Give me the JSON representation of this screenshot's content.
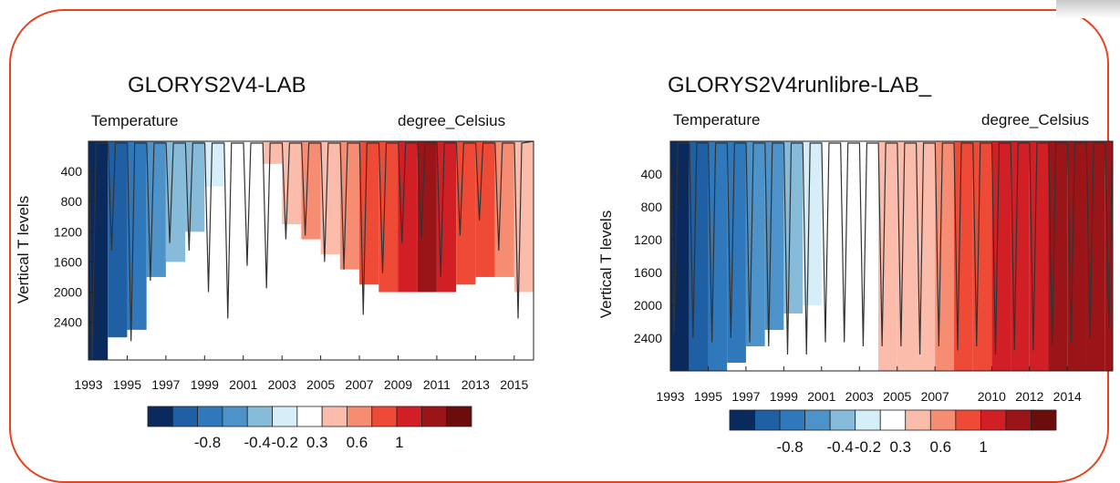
{
  "colors": {
    "frame": "#e8431e",
    "palette": [
      "#0a2a5e",
      "#1f5fa3",
      "#2f78bb",
      "#4d93c9",
      "#86bcd9",
      "#d6eef8",
      "#ffffff",
      "#fbbcac",
      "#f68c72",
      "#ef4a36",
      "#d21f26",
      "#9b1518",
      "#6b0d0d"
    ]
  },
  "chart_data": [
    {
      "type": "heatmap",
      "title": "GLORYS2V4-LAB",
      "left_label": "Temperature",
      "right_label": "degree_Celsius",
      "ylabel": "Vertical T levels",
      "xlabel": "",
      "x_ticks": [
        "1993",
        "1995",
        "1997",
        "1999",
        "2001",
        "2003",
        "2005",
        "2007",
        "2009",
        "2011",
        "2013",
        "2015"
      ],
      "y_ticks": [
        "400",
        "800",
        "1200",
        "1600",
        "2000",
        "2400"
      ],
      "xlim": [
        1993,
        2016
      ],
      "ylim": [
        2900,
        0
      ],
      "colorbar_labels": [
        "-0.8",
        "-0.4",
        "-0.2",
        "0.3",
        "0.6",
        "1"
      ],
      "grid": false,
      "anomaly_by_year": [
        {
          "x": 1993,
          "value": -1.0,
          "depth": 2900
        },
        {
          "x": 1994,
          "value": -0.8,
          "depth": 2600
        },
        {
          "x": 1995,
          "value": -0.7,
          "depth": 2500
        },
        {
          "x": 1996,
          "value": -0.4,
          "depth": 1800
        },
        {
          "x": 1997,
          "value": -0.25,
          "depth": 1600
        },
        {
          "x": 1998,
          "value": -0.2,
          "depth": 1200
        },
        {
          "x": 1999,
          "value": -0.15,
          "depth": 600
        },
        {
          "x": 2000,
          "value": 0,
          "depth": 300
        },
        {
          "x": 2001,
          "value": 0,
          "depth": 300
        },
        {
          "x": 2002,
          "value": 0.1,
          "depth": 300
        },
        {
          "x": 2003,
          "value": 0.3,
          "depth": 1100
        },
        {
          "x": 2004,
          "value": 0.35,
          "depth": 1300
        },
        {
          "x": 2005,
          "value": 0.3,
          "depth": 1500
        },
        {
          "x": 2006,
          "value": 0.4,
          "depth": 1700
        },
        {
          "x": 2007,
          "value": 0.5,
          "depth": 1900
        },
        {
          "x": 2008,
          "value": 0.55,
          "depth": 2000
        },
        {
          "x": 2009,
          "value": 0.7,
          "depth": 2000
        },
        {
          "x": 2010,
          "value": 0.9,
          "depth": 2000
        },
        {
          "x": 2011,
          "value": 0.8,
          "depth": 2000
        },
        {
          "x": 2012,
          "value": 0.6,
          "depth": 1900
        },
        {
          "x": 2013,
          "value": 0.55,
          "depth": 1800
        },
        {
          "x": 2014,
          "value": 0.4,
          "depth": 1800
        },
        {
          "x": 2015,
          "value": 0.3,
          "depth": 2000
        }
      ],
      "mixed_layer_depth_winter_max": [
        {
          "x": 1993,
          "depth": 2900
        },
        {
          "x": 1994,
          "depth": 1450
        },
        {
          "x": 1995,
          "depth": 2650
        },
        {
          "x": 1996,
          "depth": 1850
        },
        {
          "x": 1997,
          "depth": 1350
        },
        {
          "x": 1998,
          "depth": 1450
        },
        {
          "x": 1999,
          "depth": 2000
        },
        {
          "x": 2000,
          "depth": 2350
        },
        {
          "x": 2001,
          "depth": 1650
        },
        {
          "x": 2002,
          "depth": 1950
        },
        {
          "x": 2003,
          "depth": 1300
        },
        {
          "x": 2004,
          "depth": 1250
        },
        {
          "x": 2005,
          "depth": 1600
        },
        {
          "x": 2006,
          "depth": 1700
        },
        {
          "x": 2007,
          "depth": 2300
        },
        {
          "x": 2008,
          "depth": 1750
        },
        {
          "x": 2009,
          "depth": 1350
        },
        {
          "x": 2010,
          "depth": 1300
        },
        {
          "x": 2011,
          "depth": 1800
        },
        {
          "x": 2012,
          "depth": 1250
        },
        {
          "x": 2013,
          "depth": 1050
        },
        {
          "x": 2014,
          "depth": 1450
        },
        {
          "x": 2015,
          "depth": 2350
        }
      ]
    },
    {
      "type": "heatmap",
      "title": "GLORYS2V4runlibre-LAB_",
      "left_label": "Temperature",
      "right_label": "degree_Celsius",
      "ylabel": "Vertical T levels",
      "xlabel": "",
      "x_ticks": [
        "1993",
        "1995",
        "1997",
        "1999",
        "2001",
        "2003",
        "2005",
        "2007",
        "2010",
        "2012",
        "2014"
      ],
      "y_ticks": [
        "400",
        "800",
        "1200",
        "1600",
        "2000",
        "2400"
      ],
      "xlim": [
        1993,
        2016.4
      ],
      "ylim": [
        2800,
        0
      ],
      "colorbar_labels": [
        "-0.8",
        "-0.4",
        "-0.2",
        "0.3",
        "0.6",
        "1"
      ],
      "grid": false,
      "anomaly_by_year": [
        {
          "x": 1993,
          "value": -1.0,
          "depth": 2800
        },
        {
          "x": 1994,
          "value": -0.8,
          "depth": 2800
        },
        {
          "x": 1995,
          "value": -0.7,
          "depth": 2800
        },
        {
          "x": 1996,
          "value": -0.6,
          "depth": 2700
        },
        {
          "x": 1997,
          "value": -0.5,
          "depth": 2500
        },
        {
          "x": 1998,
          "value": -0.4,
          "depth": 2300
        },
        {
          "x": 1999,
          "value": -0.25,
          "depth": 2100
        },
        {
          "x": 2000,
          "value": -0.1,
          "depth": 2000
        },
        {
          "x": 2001,
          "value": 0,
          "depth": 2800
        },
        {
          "x": 2002,
          "value": 0,
          "depth": 2800
        },
        {
          "x": 2003,
          "value": 0,
          "depth": 2800
        },
        {
          "x": 2004,
          "value": 0.1,
          "depth": 2800
        },
        {
          "x": 2005,
          "value": 0.2,
          "depth": 2800
        },
        {
          "x": 2006,
          "value": 0.3,
          "depth": 2800
        },
        {
          "x": 2007,
          "value": 0.4,
          "depth": 2800
        },
        {
          "x": 2008,
          "value": 0.5,
          "depth": 2800
        },
        {
          "x": 2009,
          "value": 0.6,
          "depth": 2800
        },
        {
          "x": 2010,
          "value": 0.7,
          "depth": 2800
        },
        {
          "x": 2011,
          "value": 0.8,
          "depth": 2800
        },
        {
          "x": 2012,
          "value": 0.8,
          "depth": 2800
        },
        {
          "x": 2013,
          "value": 0.9,
          "depth": 2800
        },
        {
          "x": 2014,
          "value": 0.9,
          "depth": 2800
        },
        {
          "x": 2015,
          "value": 1.0,
          "depth": 2800
        },
        {
          "x": 2016,
          "value": 1.0,
          "depth": 2800
        }
      ],
      "mixed_layer_depth_winter_max": [
        {
          "x": 1993,
          "depth": 2350
        },
        {
          "x": 1994,
          "depth": 2400
        },
        {
          "x": 1995,
          "depth": 2450
        },
        {
          "x": 1996,
          "depth": 2400
        },
        {
          "x": 1997,
          "depth": 2450
        },
        {
          "x": 1998,
          "depth": 2500
        },
        {
          "x": 1999,
          "depth": 2600
        },
        {
          "x": 2000,
          "depth": 2600
        },
        {
          "x": 2001,
          "depth": 2450
        },
        {
          "x": 2002,
          "depth": 2450
        },
        {
          "x": 2003,
          "depth": 2500
        },
        {
          "x": 2004,
          "depth": 2500
        },
        {
          "x": 2005,
          "depth": 2500
        },
        {
          "x": 2006,
          "depth": 2600
        },
        {
          "x": 2007,
          "depth": 2500
        },
        {
          "x": 2008,
          "depth": 2550
        },
        {
          "x": 2009,
          "depth": 2500
        },
        {
          "x": 2010,
          "depth": 2600
        },
        {
          "x": 2011,
          "depth": 2550
        },
        {
          "x": 2012,
          "depth": 2550
        },
        {
          "x": 2013,
          "depth": 2500
        },
        {
          "x": 2014,
          "depth": 2450
        },
        {
          "x": 2015,
          "depth": 2400
        },
        {
          "x": 2016,
          "depth": 2300
        }
      ]
    }
  ]
}
